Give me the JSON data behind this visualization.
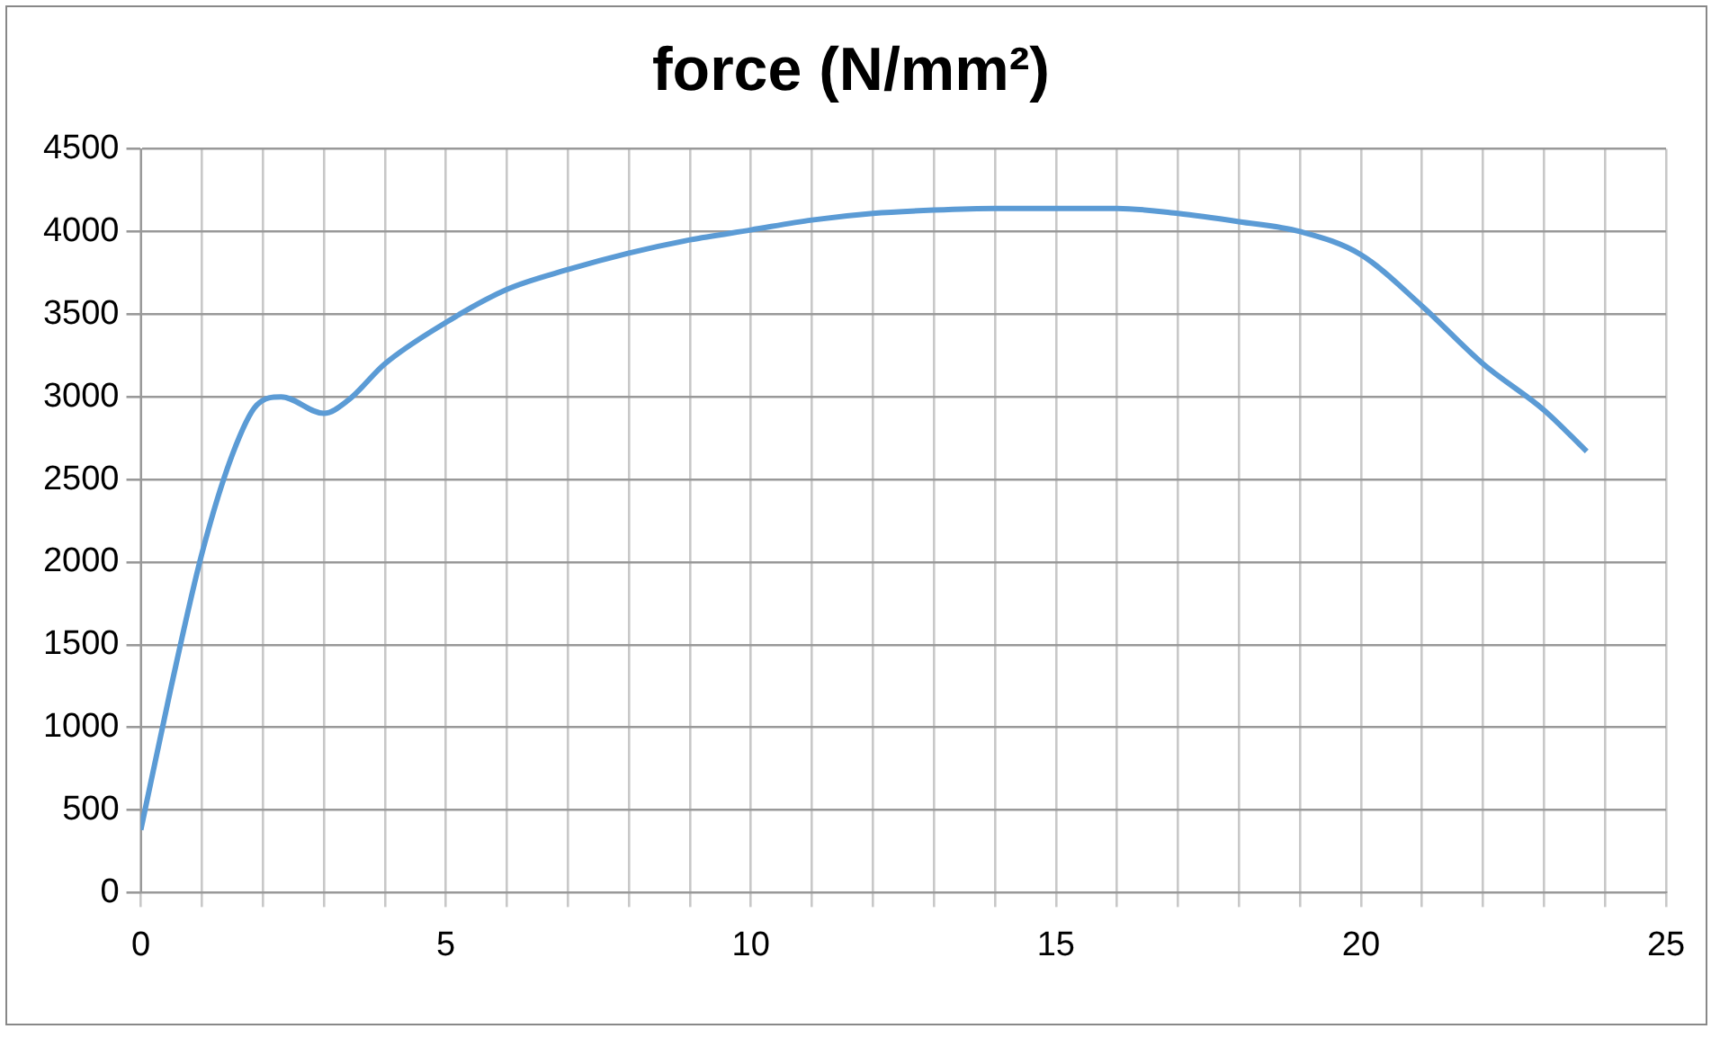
{
  "chart_data": {
    "type": "line",
    "title": "force (N/mm²)",
    "x": [
      0,
      0.5,
      1,
      1.5,
      1.9,
      2.3,
      3,
      3.4,
      4,
      5,
      6,
      7,
      8,
      9,
      10,
      11,
      12,
      13,
      14,
      15,
      16,
      17,
      18,
      19,
      20,
      21,
      22,
      23,
      23.7
    ],
    "series": [
      {
        "color": "#5b9bd5",
        "values": [
          380,
          1250,
          2050,
          2650,
          2950,
          3000,
          2900,
          2980,
          3200,
          3450,
          3650,
          3770,
          3870,
          3950,
          4010,
          4070,
          4110,
          4130,
          4140,
          4140,
          4140,
          4110,
          4060,
          4000,
          3860,
          3550,
          3200,
          2920,
          2670
        ]
      }
    ],
    "xlim": [
      0,
      25
    ],
    "xticks": [
      0,
      {
        "value": 1,
        "label": null
      },
      {
        "value": 2,
        "label": null
      },
      {
        "value": 3,
        "label": null
      },
      {
        "value": 4,
        "label": null
      },
      5,
      {
        "value": 6,
        "label": null
      },
      {
        "value": 7,
        "label": null
      },
      {
        "value": 8,
        "label": null
      },
      {
        "value": 9,
        "label": null
      },
      10,
      {
        "value": 11,
        "label": null
      },
      {
        "value": 12,
        "label": null
      },
      {
        "value": 13,
        "label": null
      },
      {
        "value": 14,
        "label": null
      },
      15,
      {
        "value": 16,
        "label": null
      },
      {
        "value": 17,
        "label": null
      },
      {
        "value": 18,
        "label": null
      },
      {
        "value": 19,
        "label": null
      },
      20,
      {
        "value": 21,
        "label": null
      },
      {
        "value": 22,
        "label": null
      },
      {
        "value": 23,
        "label": null
      },
      {
        "value": 24,
        "label": null
      },
      25
    ],
    "ylim": [
      0,
      4500
    ],
    "yticks": [
      0,
      500,
      1000,
      1500,
      2000,
      2500,
      3000,
      3500,
      4000,
      4500
    ],
    "grid": true,
    "marker": "none",
    "line_style": "solid",
    "legend": false
  }
}
